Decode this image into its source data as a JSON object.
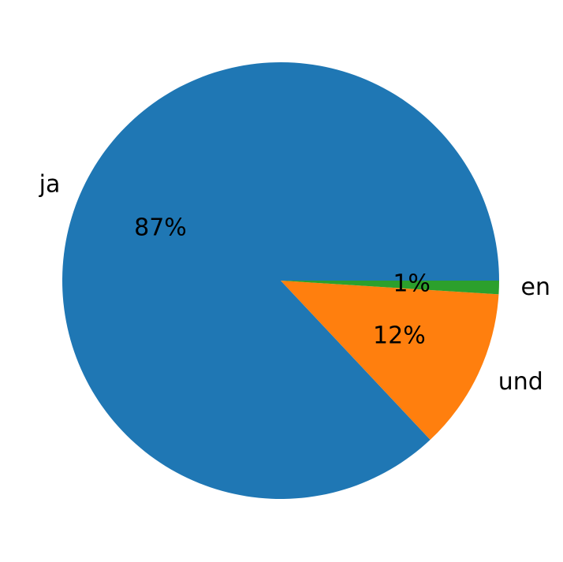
{
  "chart_data": {
    "type": "pie",
    "categories": [
      "ja",
      "und",
      "en"
    ],
    "values": [
      87,
      12,
      1
    ],
    "value_labels": [
      "87%",
      "12%",
      "1%"
    ],
    "colors": [
      "#1f77b4",
      "#ff7f0e",
      "#2ca02c"
    ]
  }
}
